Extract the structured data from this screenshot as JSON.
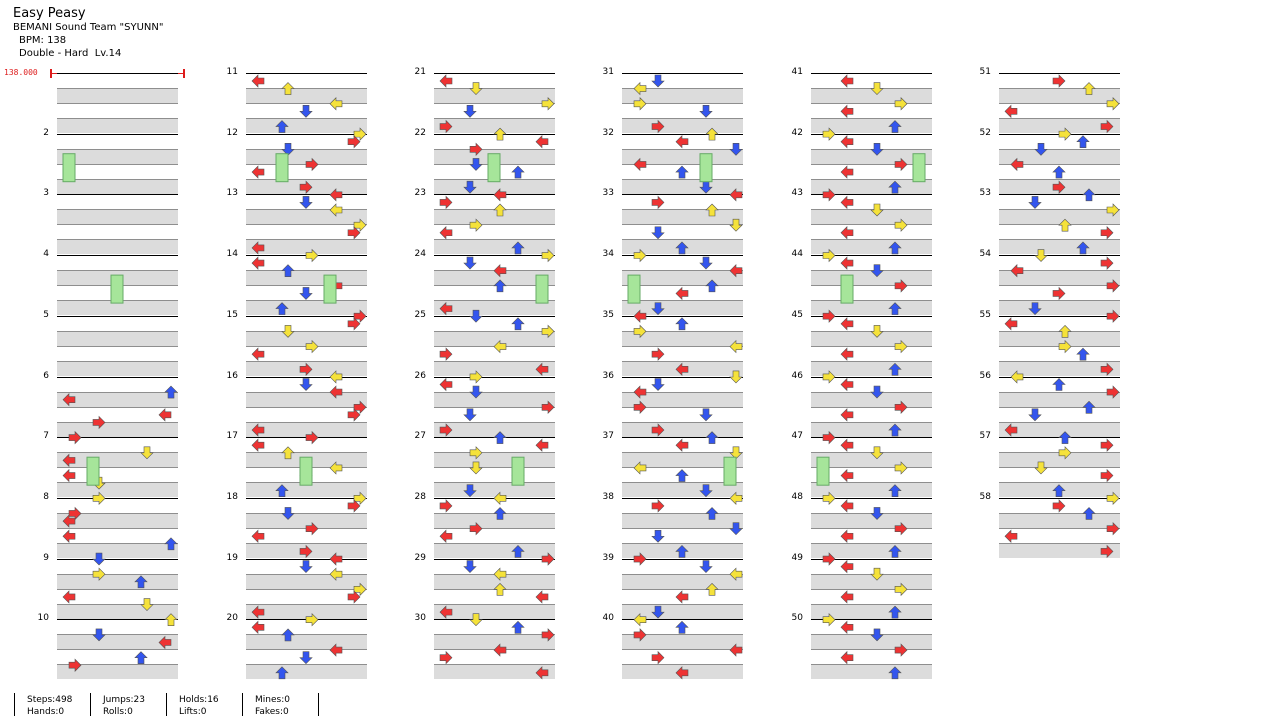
{
  "header": {
    "title": "Easy Peasy",
    "artist": "BEMANI Sound Team \"SYUNN\"",
    "bpm": "BPM: 138",
    "difficulty": "Double - Hard  Lv.14"
  },
  "bpm_marker": "138.000",
  "colors": {
    "band": "#dcdcdc",
    "red": "#ee3333",
    "blue": "#3355ee",
    "yellow": "#f5e23a",
    "hold": "#a6e59a",
    "bpm_line": "#dd1c1c"
  },
  "measure_numbers": [
    [
      "",
      "2",
      "3",
      "4",
      "5",
      "6",
      "7",
      "8",
      "9",
      "10"
    ],
    [
      "11",
      "12",
      "13",
      "14",
      "15",
      "16",
      "17",
      "18",
      "19",
      "20"
    ],
    [
      "21",
      "22",
      "23",
      "24",
      "25",
      "26",
      "27",
      "28",
      "29",
      "30"
    ],
    [
      "31",
      "32",
      "33",
      "34",
      "35",
      "36",
      "37",
      "38",
      "39",
      "40"
    ],
    [
      "41",
      "42",
      "43",
      "44",
      "45",
      "46",
      "47",
      "48",
      "49",
      "50"
    ],
    [
      "51",
      "52",
      "53",
      "54",
      "55",
      "56",
      "57",
      "58"
    ]
  ],
  "stats": {
    "steps": "Steps:498",
    "hands": "Hands:0",
    "jumps": "Jumps:23",
    "rolls": "Rolls:0",
    "holds": "Holds:16",
    "lifts": "Lifts:0",
    "mines": "Mines:0",
    "fakes": "Fakes:0"
  },
  "icon_names": [
    "arrow-left-icon",
    "arrow-down-icon",
    "arrow-up-icon",
    "arrow-right-icon",
    "hold-body-icon"
  ],
  "notes": [
    [
      [
        0,
        0,
        "left"
      ],
      [
        0,
        4,
        "up"
      ],
      [
        3,
        -1,
        "left"
      ],
      [
        2,
        1,
        "down"
      ],
      [
        1,
        4,
        "left"
      ],
      [
        1,
        1,
        "right"
      ],
      [
        2,
        3,
        "up"
      ],
      [
        3,
        0,
        "right"
      ],
      [
        1,
        0,
        "left"
      ],
      [
        4,
        3,
        "down"
      ]
    ],
    [
      [
        0,
        0,
        "left"
      ],
      [
        0,
        1,
        "up"
      ],
      [
        2,
        2,
        "right"
      ],
      [
        1,
        3,
        "left"
      ],
      [
        2,
        2,
        "down"
      ],
      [
        1,
        3,
        "left"
      ],
      [
        2,
        1,
        "up"
      ],
      [
        0,
        4,
        "right"
      ],
      [
        1,
        4,
        "right"
      ],
      [
        3,
        1,
        "down"
      ],
      [
        4,
        0,
        "left"
      ],
      [
        5,
        2,
        "right"
      ]
    ],
    [
      [
        0,
        0,
        "left"
      ],
      [
        0,
        1,
        "down"
      ],
      [
        1,
        3,
        "up"
      ],
      [
        0,
        4,
        "right"
      ],
      [
        3,
        1,
        "down"
      ],
      [
        4,
        2,
        "left"
      ],
      [
        1,
        0,
        "right"
      ],
      [
        4,
        2,
        "up"
      ],
      [
        2,
        4,
        "left"
      ],
      [
        3,
        1,
        "right"
      ]
    ],
    [
      [
        0,
        1,
        "down"
      ],
      [
        1,
        0,
        "left"
      ],
      [
        2,
        2,
        "up"
      ],
      [
        3,
        0,
        "right"
      ],
      [
        1,
        3,
        "down"
      ],
      [
        0,
        4,
        "left"
      ],
      [
        2,
        1,
        "right"
      ],
      [
        4,
        3,
        "up"
      ],
      [
        1,
        2,
        "left"
      ],
      [
        3,
        4,
        "down"
      ]
    ],
    [
      [
        0,
        1,
        "left"
      ],
      [
        1,
        2,
        "down"
      ],
      [
        2,
        0,
        "up"
      ],
      [
        4,
        3,
        "right"
      ],
      [
        3,
        1,
        "left"
      ],
      [
        0,
        4,
        "down"
      ],
      [
        2,
        3,
        "up"
      ],
      [
        1,
        0,
        "right"
      ]
    ],
    [
      [
        0,
        2,
        "right"
      ],
      [
        1,
        3,
        "up"
      ],
      [
        2,
        1,
        "down"
      ],
      [
        3,
        4,
        "right"
      ],
      [
        4,
        0,
        "left"
      ],
      [
        2,
        2,
        "up"
      ],
      [
        1,
        4,
        "right"
      ]
    ]
  ]
}
